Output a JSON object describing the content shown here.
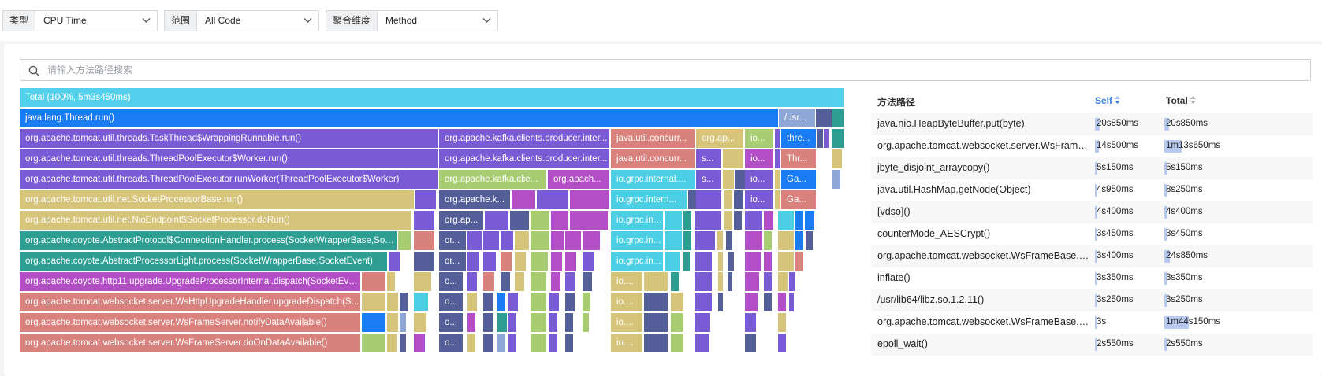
{
  "filters": [
    {
      "label": "类型",
      "value": "CPU Time"
    },
    {
      "label": "范围",
      "value": "All Code"
    },
    {
      "label": "聚合维度",
      "value": "Method"
    }
  ],
  "search": {
    "placeholder": "请输入方法路径搜索"
  },
  "colors": {
    "total": "#55d0ec",
    "blue": "#1a7cf2",
    "violet": "#7a5bd6",
    "khaki": "#d6c47a",
    "teal": "#2e9e92",
    "magenta": "#b34ec6",
    "salmon": "#d9817c",
    "navy": "#545f9a",
    "green": "#a7cc72",
    "cyan": "#4ccfe4",
    "slate": "#8fa7d6"
  },
  "flame": {
    "total_label": "Total (100%, 5m3s450ms)",
    "labels": [
      "java.lang.Thread.run()",
      "/usr...",
      "org.apache.tomcat.util.threads.TaskThread$WrappingRunnable.run()",
      "org.apache.kafka.clients.producer.inter...",
      "java.util.concurr...",
      "org.ap...",
      "io...",
      "thre...",
      "org.apache.tomcat.util.threads.ThreadPoolExecutor$Worker.run()",
      "org.apache.kafka.clients.producer.inter...",
      "java.util.concurr...",
      "s...",
      "io...",
      "Thr...",
      "org.apache.tomcat.util.threads.ThreadPoolExecutor.runWorker(ThreadPoolExecutor$Worker)",
      "org.apache.kafka.clie...",
      "org.apach...",
      "io.grpc.internal....",
      "s...",
      "io...",
      "Ga...",
      "org.apache.tomcat.util.net.SocketProcessorBase.run()",
      "org.apache.k...",
      "io.grpc.intern...",
      "io...",
      "Ga...",
      "org.apache.tomcat.util.net.NioEndpoint$SocketProcessor.doRun()",
      "org.ap...",
      "io.grpc.int...",
      "org.apache.coyote.AbstractProtocol$ConnectionHandler.process(SocketWrapperBase,Soc...",
      "or...",
      "io.grpc.in...",
      "org.apache.coyote.AbstractProcessorLight.process(SocketWrapperBase,SocketEvent)",
      "or...",
      "io.grpc.in...",
      "org.apache.coyote.http11.upgrade.UpgradeProcessorInternal.dispatch(SocketEve...",
      "o...",
      "io....",
      "org.apache.tomcat.websocket.server.WsHttpUpgradeHandler.upgradeDispatch(S...",
      "o...",
      "io....",
      "org.apache.tomcat.websocket.server.WsFrameServer.notifyDataAvailable()",
      "o...",
      "io....",
      "org.apache.tomcat.websocket.server.WsFrameServer.doOnDataAvailable()",
      "o...",
      "io...."
    ]
  },
  "table": {
    "headers": {
      "path": "方法路径",
      "self": "Self",
      "total": "Total"
    },
    "rows": [
      {
        "path": "java.nio.HeapByteBuffer.put(byte)",
        "self": "20s850ms",
        "self_pct": 7,
        "total": "20s850ms",
        "total_pct": 7
      },
      {
        "path": "org.apache.tomcat.websocket.server.WsFrameServer.onDataAvailable()",
        "self": "14s500ms",
        "self_pct": 5,
        "total": "1m13s650ms",
        "total_pct": 24
      },
      {
        "path": "jbyte_disjoint_arraycopy()",
        "self": "5s150ms",
        "self_pct": 2,
        "total": "5s150ms",
        "total_pct": 2
      },
      {
        "path": "java.util.HashMap.getNode(Object)",
        "self": "4s950ms",
        "self_pct": 2,
        "total": "8s250ms",
        "total_pct": 3
      },
      {
        "path": "[vdso]()",
        "self": "4s400ms",
        "self_pct": 1,
        "total": "4s400ms",
        "total_pct": 1
      },
      {
        "path": "counterMode_AESCrypt()",
        "self": "3s450ms",
        "self_pct": 1,
        "total": "3s450ms",
        "total_pct": 1
      },
      {
        "path": "org.apache.tomcat.websocket.WsFrameBase.processData()",
        "self": "3s400ms",
        "self_pct": 1,
        "total": "24s850ms",
        "total_pct": 8
      },
      {
        "path": "inflate()",
        "self": "3s350ms",
        "self_pct": 1,
        "total": "3s350ms",
        "total_pct": 1
      },
      {
        "path": "/usr/lib64/libz.so.1.2.11()",
        "self": "3s250ms",
        "self_pct": 1,
        "total": "3s250ms",
        "total_pct": 1
      },
      {
        "path": "org.apache.tomcat.websocket.WsFrameBase.processDataText()",
        "self": "3s",
        "self_pct": 1,
        "total": "1m44s150ms",
        "total_pct": 34
      },
      {
        "path": "epoll_wait()",
        "self": "2s550ms",
        "self_pct": 1,
        "total": "2s550ms",
        "total_pct": 1
      }
    ]
  }
}
